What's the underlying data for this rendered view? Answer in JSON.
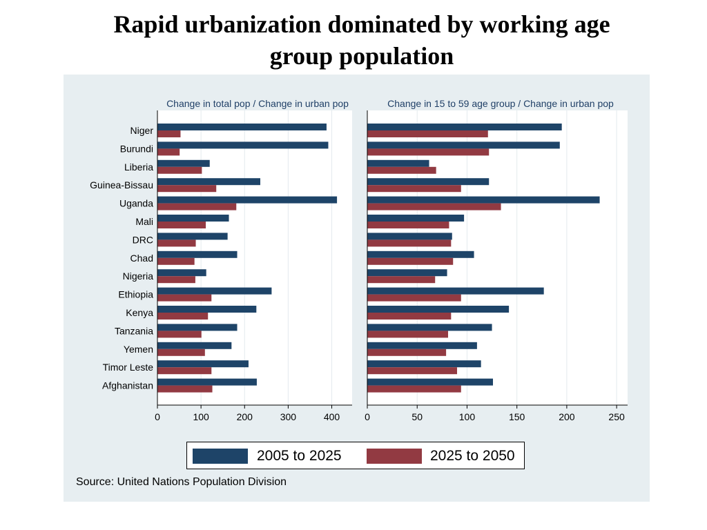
{
  "title": {
    "line1": "Rapid urbanization dominated by working age",
    "line2": "group population"
  },
  "colors": {
    "series_2005_2025": "#1e4468",
    "series_2025_2050": "#923a42",
    "panel_bg": "#e7eef1",
    "plot_bg": "#ffffff",
    "subtitle": "#1f3f66"
  },
  "legend": {
    "placement": "bottom",
    "items": [
      {
        "label": "2005 to 2025",
        "color": "#1e4468"
      },
      {
        "label": "2025 to 2050",
        "color": "#923a42"
      }
    ]
  },
  "source": "Source: United Nations Population Division",
  "chart_data": [
    {
      "type": "bar",
      "orientation": "horizontal",
      "title": "Change in total pop / Change in urban pop",
      "categories": [
        "Niger",
        "Burundi",
        "Liberia",
        "Guinea-Bissau",
        "Uganda",
        "Mali",
        "DRC",
        "Chad",
        "Nigeria",
        "Ethiopia",
        "Kenya",
        "Tanzania",
        "Yemen",
        "Timor Leste",
        "Afghanistan"
      ],
      "series": [
        {
          "name": "2005 to 2025",
          "values": [
            388,
            392,
            120,
            236,
            412,
            164,
            161,
            183,
            112,
            262,
            227,
            183,
            170,
            209,
            228
          ]
        },
        {
          "name": "2025 to 2050",
          "values": [
            53,
            51,
            102,
            135,
            181,
            111,
            88,
            85,
            87,
            124,
            116,
            101,
            109,
            124,
            126
          ]
        }
      ],
      "xlim": [
        0,
        440
      ],
      "xticks": [
        0,
        100,
        200,
        300,
        400
      ],
      "grid": true
    },
    {
      "type": "bar",
      "orientation": "horizontal",
      "title": "Change in 15 to 59 age group / Change in urban pop",
      "categories": [
        "Niger",
        "Burundi",
        "Liberia",
        "Guinea-Bissau",
        "Uganda",
        "Mali",
        "DRC",
        "Chad",
        "Nigeria",
        "Ethiopia",
        "Kenya",
        "Tanzania",
        "Yemen",
        "Timor Leste",
        "Afghanistan"
      ],
      "series": [
        {
          "name": "2005 to 2025",
          "values": [
            195,
            193,
            62,
            122,
            233,
            97,
            85,
            107,
            80,
            177,
            142,
            125,
            110,
            114,
            126
          ]
        },
        {
          "name": "2025 to 2050",
          "values": [
            121,
            122,
            69,
            94,
            134,
            82,
            84,
            86,
            68,
            94,
            84,
            81,
            79,
            90,
            94
          ]
        }
      ],
      "xlim": [
        0,
        261
      ],
      "xticks": [
        0,
        50,
        100,
        150,
        200,
        250
      ],
      "grid": true
    }
  ]
}
